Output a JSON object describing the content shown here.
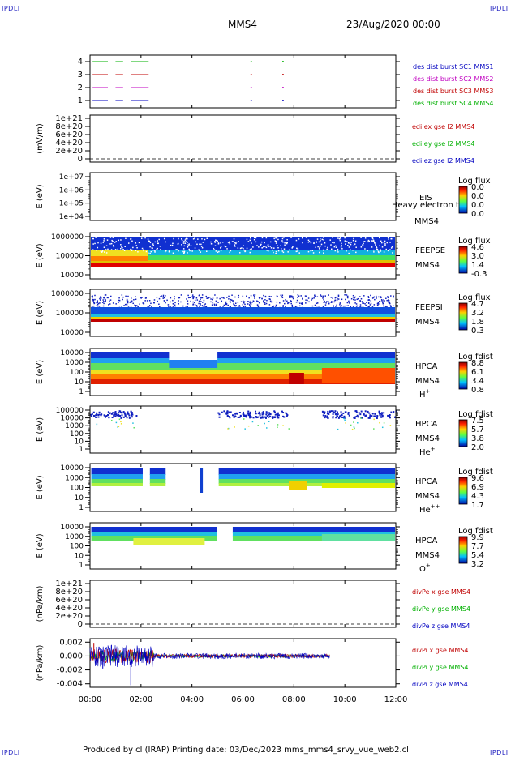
{
  "corners": {
    "tl": "IPDLI",
    "tr": "IPDLI",
    "bl": "IPDLI",
    "br": "IPDLI"
  },
  "header": {
    "spacecraft": "MMS4",
    "date": "23/Aug/2020 00:00"
  },
  "footer": {
    "text": "Produced by cl (IRAP)   Printing date: 03/Dec/2023   mms_mms4_srvy_vue_web2.cl"
  },
  "colors": {
    "c1": "#0000c0",
    "c2": "#c000c0",
    "c3": "#c00000",
    "c4": "#00b000",
    "x": "#c00000",
    "y": "#00b000",
    "z": "#0000c0"
  },
  "chart_data": [
    {
      "id": "burst",
      "type": "line",
      "ylim": [
        0.5,
        4.5
      ],
      "ticks": [
        "1",
        "2",
        "3",
        "4"
      ],
      "ylabel": "",
      "legend": [
        "des dist burst SC1 MMS1",
        "des dist burst SC2 MMS2",
        "des dist burst SC3 MMS3",
        "des dist burst SC4 MMS4"
      ],
      "segments_hours": [
        [
          0.1,
          0.7
        ],
        [
          1.0,
          1.3
        ],
        [
          1.6,
          2.3
        ]
      ]
    },
    {
      "id": "edi",
      "type": "line",
      "ylabel": "(mV/m)",
      "ticks": [
        "1e+21",
        "8e+20",
        "6e+20",
        "4e+20",
        "2e+20",
        "0"
      ],
      "legend": [
        "edi ex gse l2 MMS4",
        "edi ey gse l2 MMS4",
        "edi ez gse l2 MMS4"
      ]
    },
    {
      "id": "eis",
      "type": "heatmap",
      "ylabel": "E (eV)",
      "ticks": [
        "1e+07",
        "1e+06",
        "1e+05",
        "1e+04"
      ],
      "name": [
        "EIS",
        "MMS4"
      ],
      "overlay": "Heavy electron to",
      "cbar_title": "Log flux",
      "cbar_ticks": [
        "0.0",
        "0.0",
        "0.0",
        "0.0"
      ]
    },
    {
      "id": "feepse",
      "type": "heatmap",
      "ylabel": "E (eV)",
      "ticks": [
        "1000000",
        "100000",
        "10000"
      ],
      "name": [
        "FEEPSE",
        "MMS4"
      ],
      "cbar_title": "Log flux",
      "cbar_ticks": [
        "4.6",
        "3.0",
        "1.4",
        "-0.3"
      ]
    },
    {
      "id": "feepsi",
      "type": "heatmap",
      "ylabel": "E (eV)",
      "ticks": [
        "1000000",
        "100000",
        "10000"
      ],
      "name": [
        "FEEPSI",
        "MMS4"
      ],
      "cbar_title": "Log flux",
      "cbar_ticks": [
        "4.7",
        "3.2",
        "1.8",
        "0.3"
      ]
    },
    {
      "id": "hpca_h",
      "type": "heatmap",
      "ylabel": "E (eV)",
      "ticks": [
        "10000",
        "1000",
        "100",
        "10",
        "1"
      ],
      "name": [
        "HPCA",
        "MMS4"
      ],
      "species": "H",
      "sup": "+",
      "cbar_title": "Log fdist",
      "cbar_ticks": [
        "8.8",
        "6.1",
        "3.4",
        "0.8"
      ]
    },
    {
      "id": "hpca_he",
      "type": "heatmap",
      "ylabel": "E (eV)",
      "ticks": [
        "100000",
        "10000",
        "1000",
        "100",
        "10",
        "1"
      ],
      "name": [
        "HPCA",
        "MMS4"
      ],
      "species": "He",
      "sup": "+",
      "cbar_title": "Log fdist",
      "cbar_ticks": [
        "7.5",
        "5.7",
        "3.8",
        "2.0"
      ]
    },
    {
      "id": "hpca_hepp",
      "type": "heatmap",
      "ylabel": "E (eV)",
      "ticks": [
        "10000",
        "1000",
        "100",
        "10",
        "1"
      ],
      "name": [
        "HPCA",
        "MMS4"
      ],
      "species": "He",
      "sup": "++",
      "cbar_title": "Log fdist",
      "cbar_ticks": [
        "9.6",
        "6.9",
        "4.3",
        "1.7"
      ]
    },
    {
      "id": "hpca_o",
      "type": "heatmap",
      "ylabel": "E (eV)",
      "ticks": [
        "10000",
        "1000",
        "100",
        "10",
        "1"
      ],
      "name": [
        "HPCA",
        "MMS4"
      ],
      "species": "O",
      "sup": "+",
      "cbar_title": "Log fdist",
      "cbar_ticks": [
        "9.9",
        "7.7",
        "5.4",
        "3.2"
      ]
    },
    {
      "id": "divpe",
      "type": "line",
      "ylabel": "(nPa/km)",
      "ticks": [
        "1e+21",
        "8e+20",
        "6e+20",
        "4e+20",
        "2e+20",
        "0"
      ],
      "legend": [
        "divPe x gse MMS4",
        "divPe y gse MMS4",
        "divPe z gse MMS4"
      ]
    },
    {
      "id": "divpi",
      "type": "line",
      "ylabel": "(nPa/km)",
      "ylim": [
        -0.0045,
        0.0025
      ],
      "ticks": [
        "0.002",
        "0.000",
        "-0.002",
        "-0.004"
      ],
      "tick_values": [
        0.002,
        0.0,
        -0.002,
        -0.004
      ],
      "legend": [
        "divPi x gse MMS4",
        "divPi y gse MMS4",
        "divPi z gse MMS4"
      ]
    }
  ],
  "xaxis": {
    "ticks": [
      "00:00",
      "02:00",
      "04:00",
      "06:00",
      "08:00",
      "10:00",
      "12:00"
    ],
    "range_hours": [
      0,
      12
    ]
  }
}
